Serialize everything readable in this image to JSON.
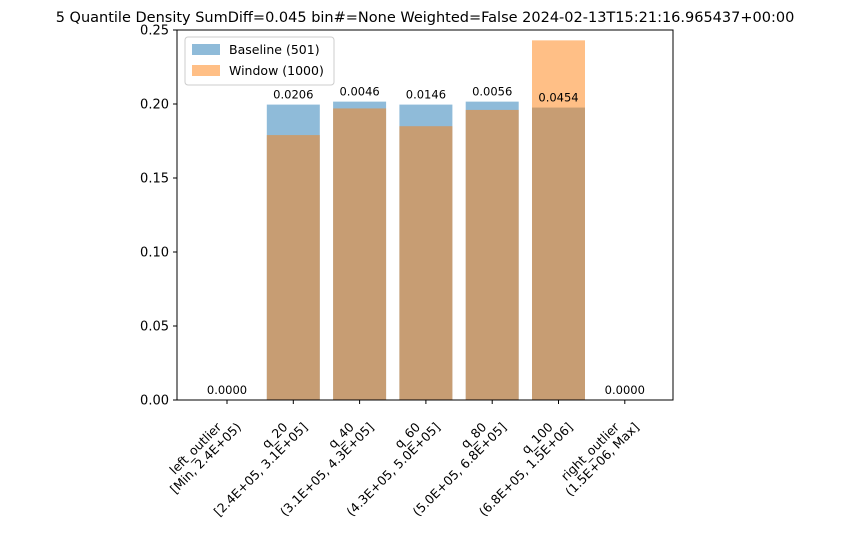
{
  "chart_data": {
    "type": "bar",
    "title": "5 Quantile Density SumDiff=0.045 bin#=None Weighted=False 2024-02-13T15:21:16.965437+00:00",
    "xlabel": "",
    "ylabel": "",
    "ylim": [
      0,
      0.25
    ],
    "yticks": [
      "0.00",
      "0.05",
      "0.10",
      "0.15",
      "0.20",
      "0.25"
    ],
    "categories": [
      [
        "left_outlier",
        "[Min, 2.4E+05)"
      ],
      [
        "q_20",
        "[2.4E+05, 3.1E+05]"
      ],
      [
        "q_40",
        "(3.1E+05, 4.3E+05]"
      ],
      [
        "q_60",
        "(4.3E+05, 5.0E+05]"
      ],
      [
        "q_80",
        "(5.0E+05, 6.8E+05]"
      ],
      [
        "q_100",
        "(6.8E+05, 1.5E+06]"
      ],
      [
        "right_outlier",
        "(1.5E+06, Max]"
      ]
    ],
    "series": [
      {
        "name": "Baseline (501)",
        "color": "#1f77b4",
        "values": [
          0.0,
          0.1996,
          0.2016,
          0.1996,
          0.2016,
          0.1976,
          0.0
        ]
      },
      {
        "name": "Window (1000)",
        "color": "#ff7f0e",
        "values": [
          0.0,
          0.179,
          0.197,
          0.185,
          0.196,
          0.243,
          0.0
        ]
      }
    ],
    "bar_labels": [
      "0.0000",
      "0.0206",
      "0.0046",
      "0.0146",
      "0.0056",
      "0.0454",
      "0.0000"
    ],
    "legend_placement": "top-left",
    "grid": false
  }
}
